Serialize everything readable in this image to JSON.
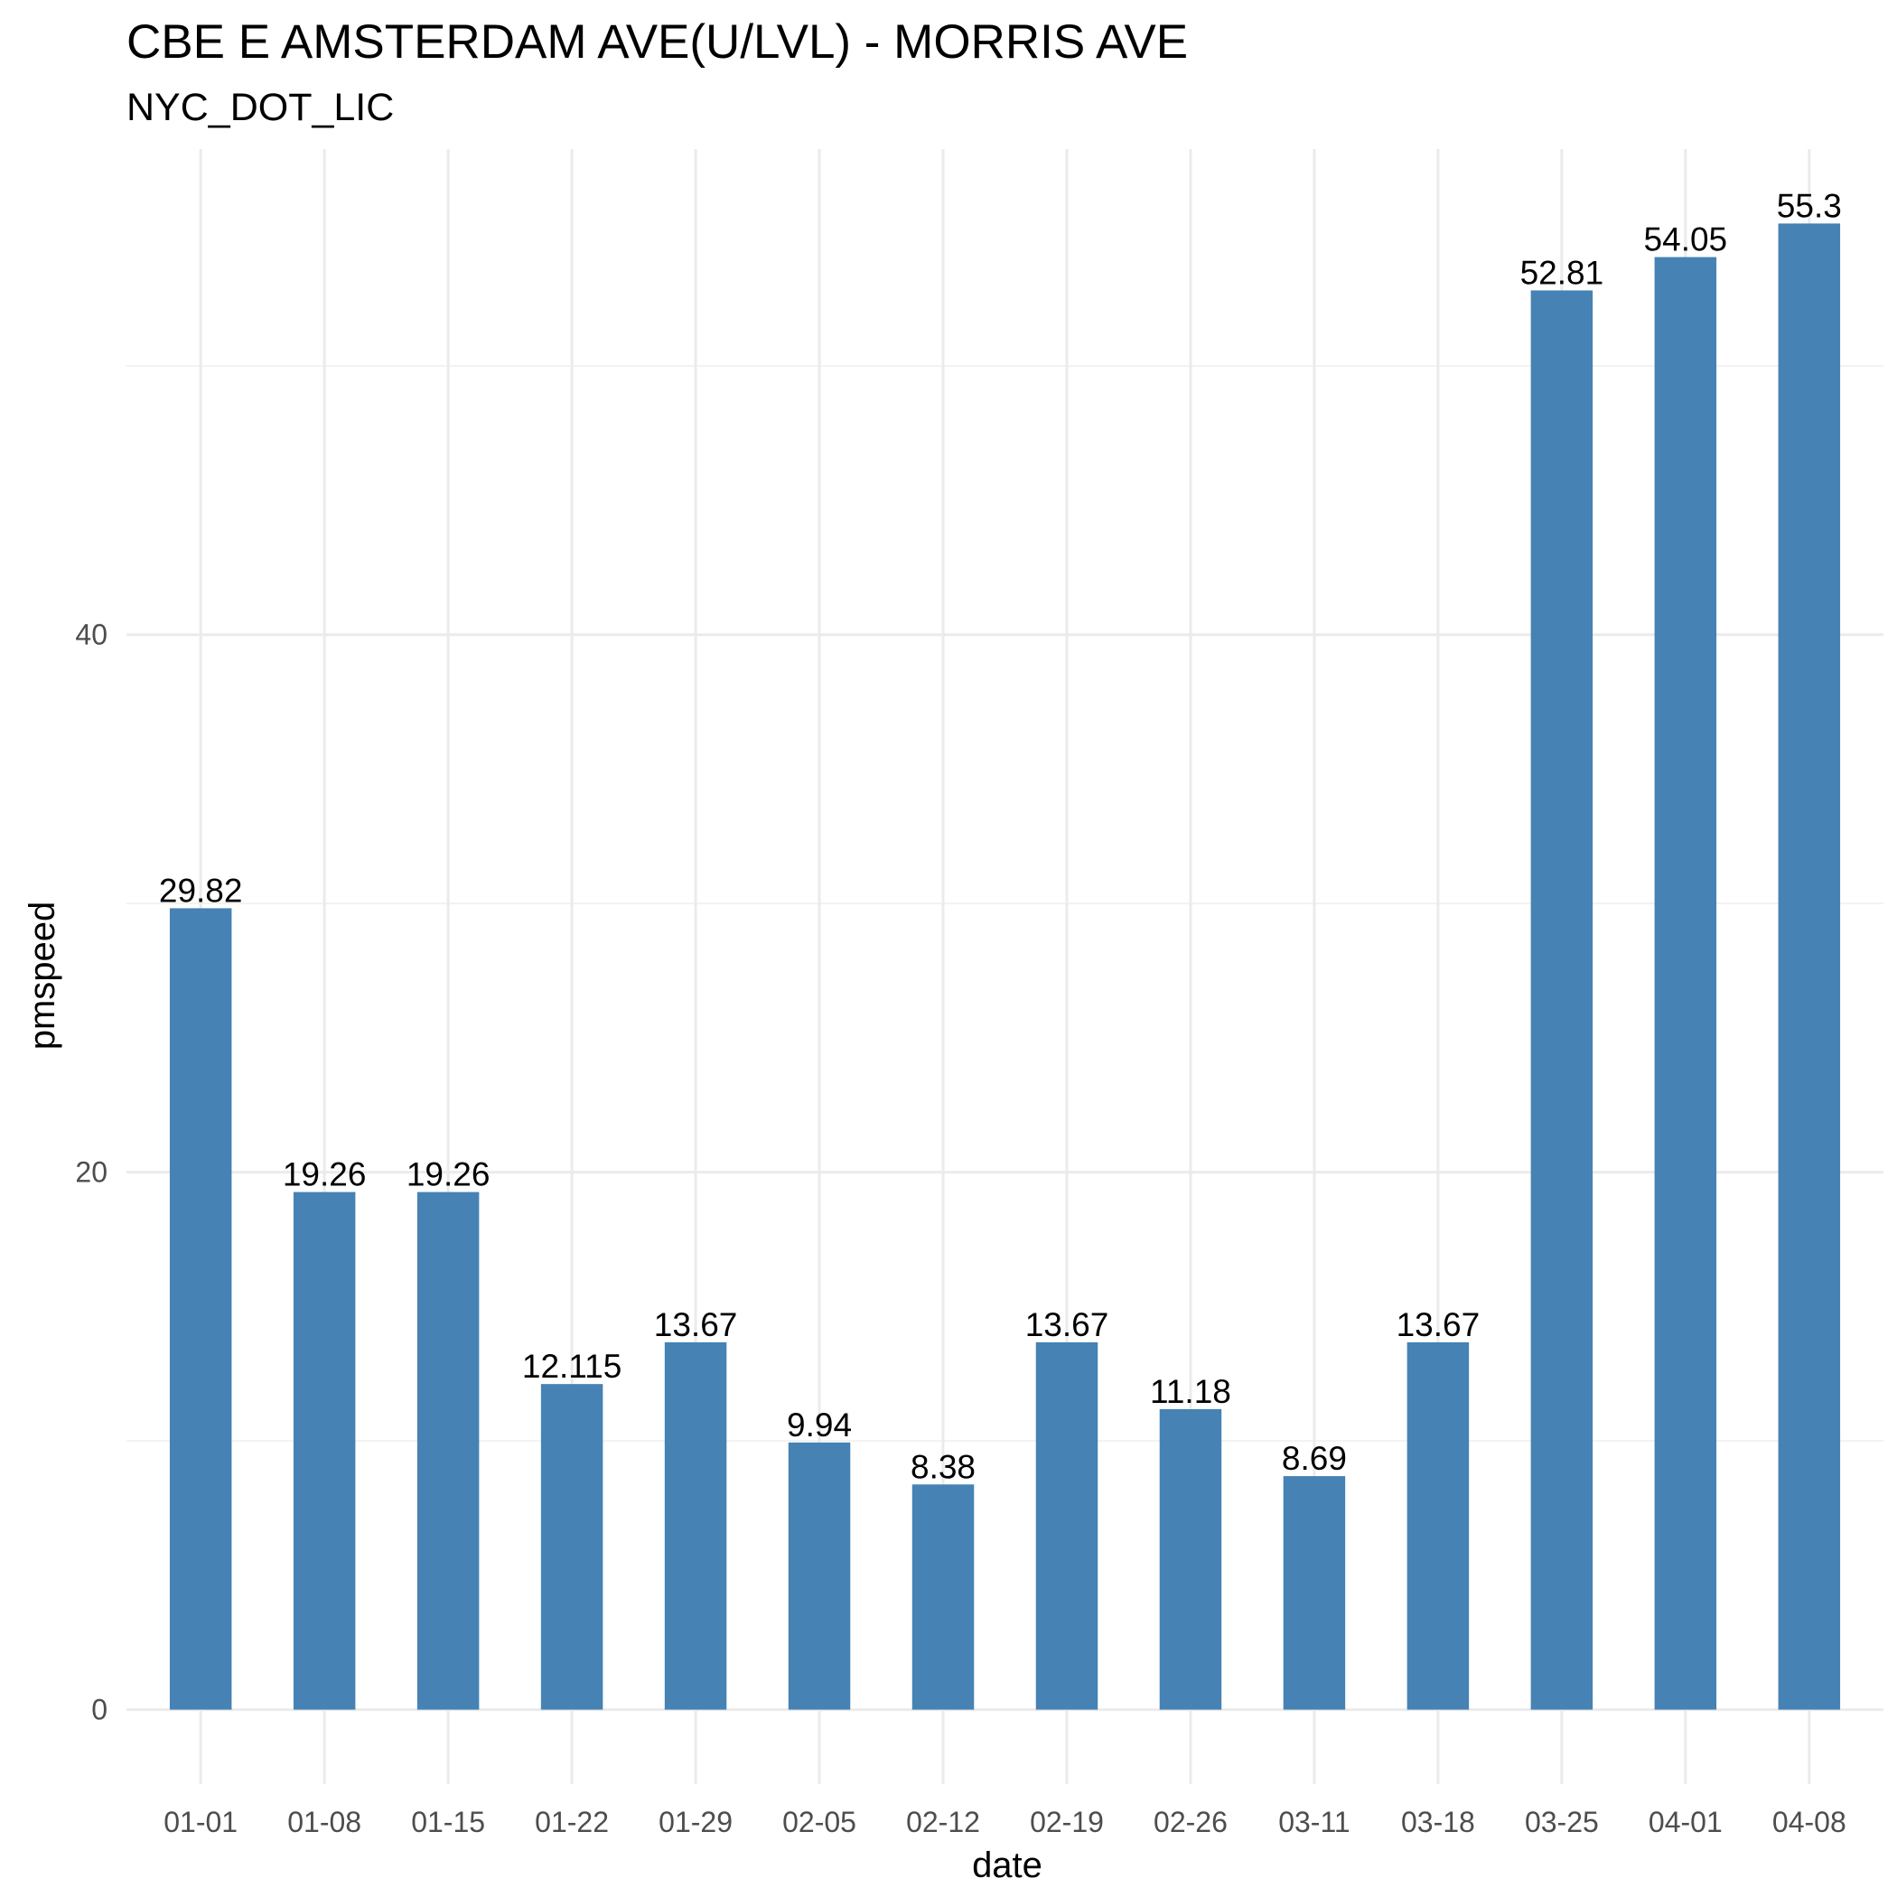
{
  "chart_data": {
    "type": "bar",
    "title": "CBE E AMSTERDAM AVE(U/LVL) - MORRIS AVE",
    "subtitle": "NYC_DOT_LIC",
    "xlabel": "date",
    "ylabel": "pmspeed",
    "categories": [
      "01-01",
      "01-08",
      "01-15",
      "01-22",
      "01-29",
      "02-05",
      "02-12",
      "02-19",
      "02-26",
      "03-11",
      "03-18",
      "03-25",
      "04-01",
      "04-08"
    ],
    "values": [
      29.82,
      19.26,
      19.26,
      12.115,
      13.67,
      9.94,
      8.38,
      13.67,
      11.18,
      8.69,
      13.67,
      52.81,
      54.05,
      55.3
    ],
    "value_labels": [
      "29.82",
      "19.26",
      "19.26",
      "12.115",
      "13.67",
      "9.94",
      "8.38",
      "13.67",
      "11.18",
      "8.69",
      "13.67",
      "52.81",
      "54.05",
      "55.3"
    ],
    "yticks": [
      0,
      20,
      40
    ],
    "ytick_labels": [
      "0",
      "20",
      "40"
    ],
    "ylim": [
      -2.77,
      58.07
    ],
    "grid": true,
    "bar_color": "#4682b4",
    "legend": "none"
  }
}
